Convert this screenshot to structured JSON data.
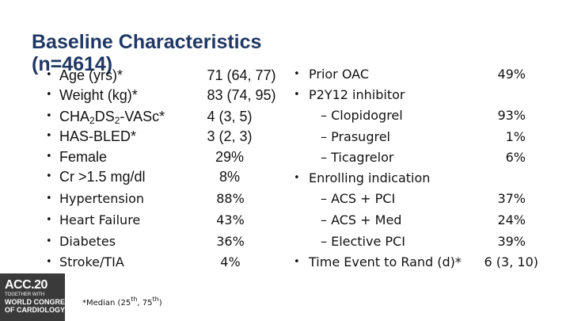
{
  "title": {
    "line1": "Baseline Characteristics",
    "line2": "(n=4614)"
  },
  "left_items": [
    {
      "label": "Age (yrs)*",
      "value": "71 (64, 77)"
    },
    {
      "label": "Weight (kg)*",
      "value": "83 (74, 95)"
    },
    {
      "label_pre": "CHA",
      "label_sub1": "2",
      "label_mid": "DS",
      "label_sub2": "2",
      "label_post": "-VASc*",
      "value": "4 (3, 5)"
    },
    {
      "label": "HAS-BLED*",
      "value": "3 (2, 3)"
    },
    {
      "label": "Female",
      "value": "29%"
    },
    {
      "label": "Cr >1.5 mg/dl",
      "value": "8%"
    },
    {
      "label": "Hypertension",
      "value": "88%"
    },
    {
      "label": "Heart Failure",
      "value": "43%"
    },
    {
      "label": "Diabetes",
      "value": "36%"
    },
    {
      "label": "Stroke/TIA",
      "value": "4%"
    }
  ],
  "right_items": [
    {
      "label": "Prior OAC",
      "value": "49%"
    },
    {
      "label": "P2Y12 inhibitor",
      "value": ""
    },
    {
      "label": "– Clopidogrel",
      "value": "93%"
    },
    {
      "label": "– Prasugrel",
      "value": "1%"
    },
    {
      "label": "– Ticagrelor",
      "value": "6%"
    },
    {
      "label": "Enrolling indication",
      "value": ""
    },
    {
      "label": "– ACS + PCI",
      "value": "37%"
    },
    {
      "label": "– ACS + Med",
      "value": "24%"
    },
    {
      "label": "– Elective PCI",
      "value": "39%"
    },
    {
      "label": "Time Event to Rand (d)*",
      "value": "6 (3, 10)"
    }
  ],
  "footnote": {
    "pre": "*Median (25",
    "sup1": "th",
    "mid": ", 75",
    "sup2": "th",
    "post": ")"
  },
  "logo": {
    "line1": "ACC.20",
    "line2": "TOGETHER WITH",
    "line3": "WORLD CONGRESS",
    "line4": "OF CARDIOLOGY"
  }
}
